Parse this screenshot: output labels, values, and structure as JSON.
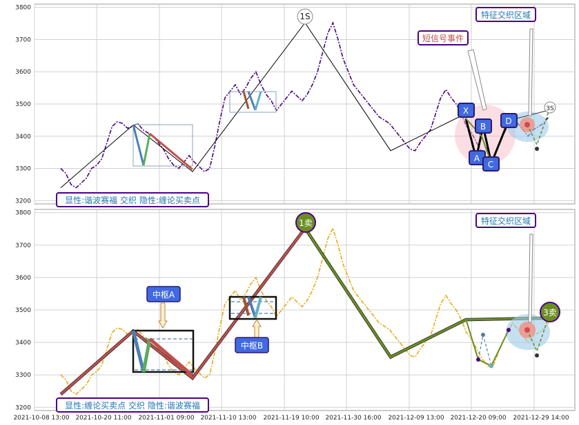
{
  "chart_data": [
    {
      "type": "line",
      "title": "",
      "ylim": [
        3190,
        3810
      ],
      "y_ticks": [
        "3200",
        "3300",
        "3400",
        "3500",
        "3600",
        "3700",
        "3800"
      ],
      "grid": true,
      "series": [
        {
          "color": "#4b0082",
          "style": "dash-dot",
          "values": [
            3300,
            3285,
            3250,
            3240,
            3255,
            3270,
            3300,
            3310,
            3330,
            3380,
            3430,
            3445,
            3440,
            3425,
            3430,
            3440,
            3420,
            3410,
            3400,
            3380,
            3360,
            3330,
            3310,
            3300,
            3320,
            3340,
            3320,
            3305,
            3290,
            3300,
            3370,
            3450,
            3520,
            3540,
            3560,
            3530,
            3550,
            3580,
            3600,
            3560,
            3530,
            3510,
            3480,
            3500,
            3520,
            3540,
            3525,
            3510,
            3530,
            3560,
            3600,
            3660,
            3720,
            3752,
            3700,
            3640,
            3600,
            3560,
            3540,
            3520,
            3500,
            3480,
            3460,
            3450,
            3440,
            3420,
            3400,
            3380,
            3360,
            3355,
            3380,
            3400,
            3420,
            3470,
            3520,
            3545,
            3520,
            3500,
            3470,
            3430,
            3410,
            3380,
            3350,
            3330,
            3320,
            3360,
            3400,
            3430,
            3460,
            3440,
            3420,
            3400,
            3420,
            3430,
            3440,
            3460
          ]
        },
        {
          "color": "#000000",
          "style": "solid",
          "values": [
            3240,
            3435,
            3290,
            3752,
            3355,
            3470
          ]
        }
      ],
      "annotations": [
        "1S",
        "3S",
        "X",
        "A",
        "B",
        "C",
        "D"
      ],
      "callouts": [
        "短信号事件",
        "特征交织区域"
      ],
      "legend": "显性:谐波赛福 交织 隐性:缠论买卖点"
    },
    {
      "type": "line",
      "title": "",
      "ylim": [
        3190,
        3810
      ],
      "y_ticks": [
        "3200",
        "3300",
        "3400",
        "3500",
        "3600",
        "3700",
        "3800"
      ],
      "x_ticks": [
        "2021-10-08 13:00",
        "2021-10-20 11:00",
        "2021-11-01 09:00",
        "2021-11-10 13:00",
        "2021-11-19 10:00",
        "2021-11-30 16:00",
        "2021-12-09 13:00",
        "2021-12-20 09:00",
        "2021-12-29 14:00"
      ],
      "grid": true,
      "series": [
        {
          "color": "#e6a817",
          "style": "dash-dot",
          "values": [
            3300,
            3285,
            3250,
            3240,
            3255,
            3270,
            3300,
            3310,
            3330,
            3380,
            3430,
            3445,
            3440,
            3425,
            3430,
            3440,
            3420,
            3410,
            3400,
            3380,
            3360,
            3330,
            3310,
            3300,
            3320,
            3340,
            3320,
            3305,
            3290,
            3300,
            3370,
            3450,
            3520,
            3540,
            3560,
            3530,
            3550,
            3580,
            3600,
            3560,
            3530,
            3510,
            3480,
            3500,
            3520,
            3540,
            3525,
            3510,
            3530,
            3560,
            3600,
            3660,
            3720,
            3752,
            3700,
            3640,
            3600,
            3560,
            3540,
            3520,
            3500,
            3480,
            3460,
            3450,
            3440,
            3420,
            3400,
            3380,
            3360,
            3355,
            3380,
            3400,
            3420,
            3470,
            3520,
            3545,
            3520,
            3500,
            3470,
            3430,
            3410,
            3380,
            3350,
            3330,
            3320,
            3360,
            3400,
            3430,
            3460,
            3440,
            3420,
            3400,
            3420,
            3430,
            3440,
            3460
          ]
        },
        {
          "color": "#c0504d",
          "style": "solid",
          "values": [
            3240,
            3435,
            3290,
            3752
          ]
        },
        {
          "color": "#6b8e23",
          "style": "solid",
          "values": [
            3752,
            3355,
            3470,
            3475
          ]
        }
      ],
      "annotations": [
        "1卖",
        "3卖"
      ],
      "callouts": [
        "中枢A",
        "中枢B",
        "特征交织区域"
      ],
      "legend": "显性:缠论买卖点 交织 隐性:谐波赛福"
    }
  ],
  "labels": {
    "top_legend": "显性:谐波赛福 交织 隐性:缠论买卖点",
    "bottom_legend": "显性:缠论买卖点 交织 隐性:谐波赛福",
    "callout_short_signal": "短信号事件",
    "callout_feature_top": "特征交织区域",
    "callout_feature_bottom": "特征交织区域",
    "zhongshu_a": "中枢A",
    "zhongshu_b": "中枢B",
    "mark_1s": "1S",
    "mark_3s": "3S",
    "mark_1sell": "1卖",
    "mark_3sell": "3卖",
    "pt_x": "X",
    "pt_a": "A",
    "pt_b": "B",
    "pt_c": "C",
    "pt_d": "D"
  }
}
